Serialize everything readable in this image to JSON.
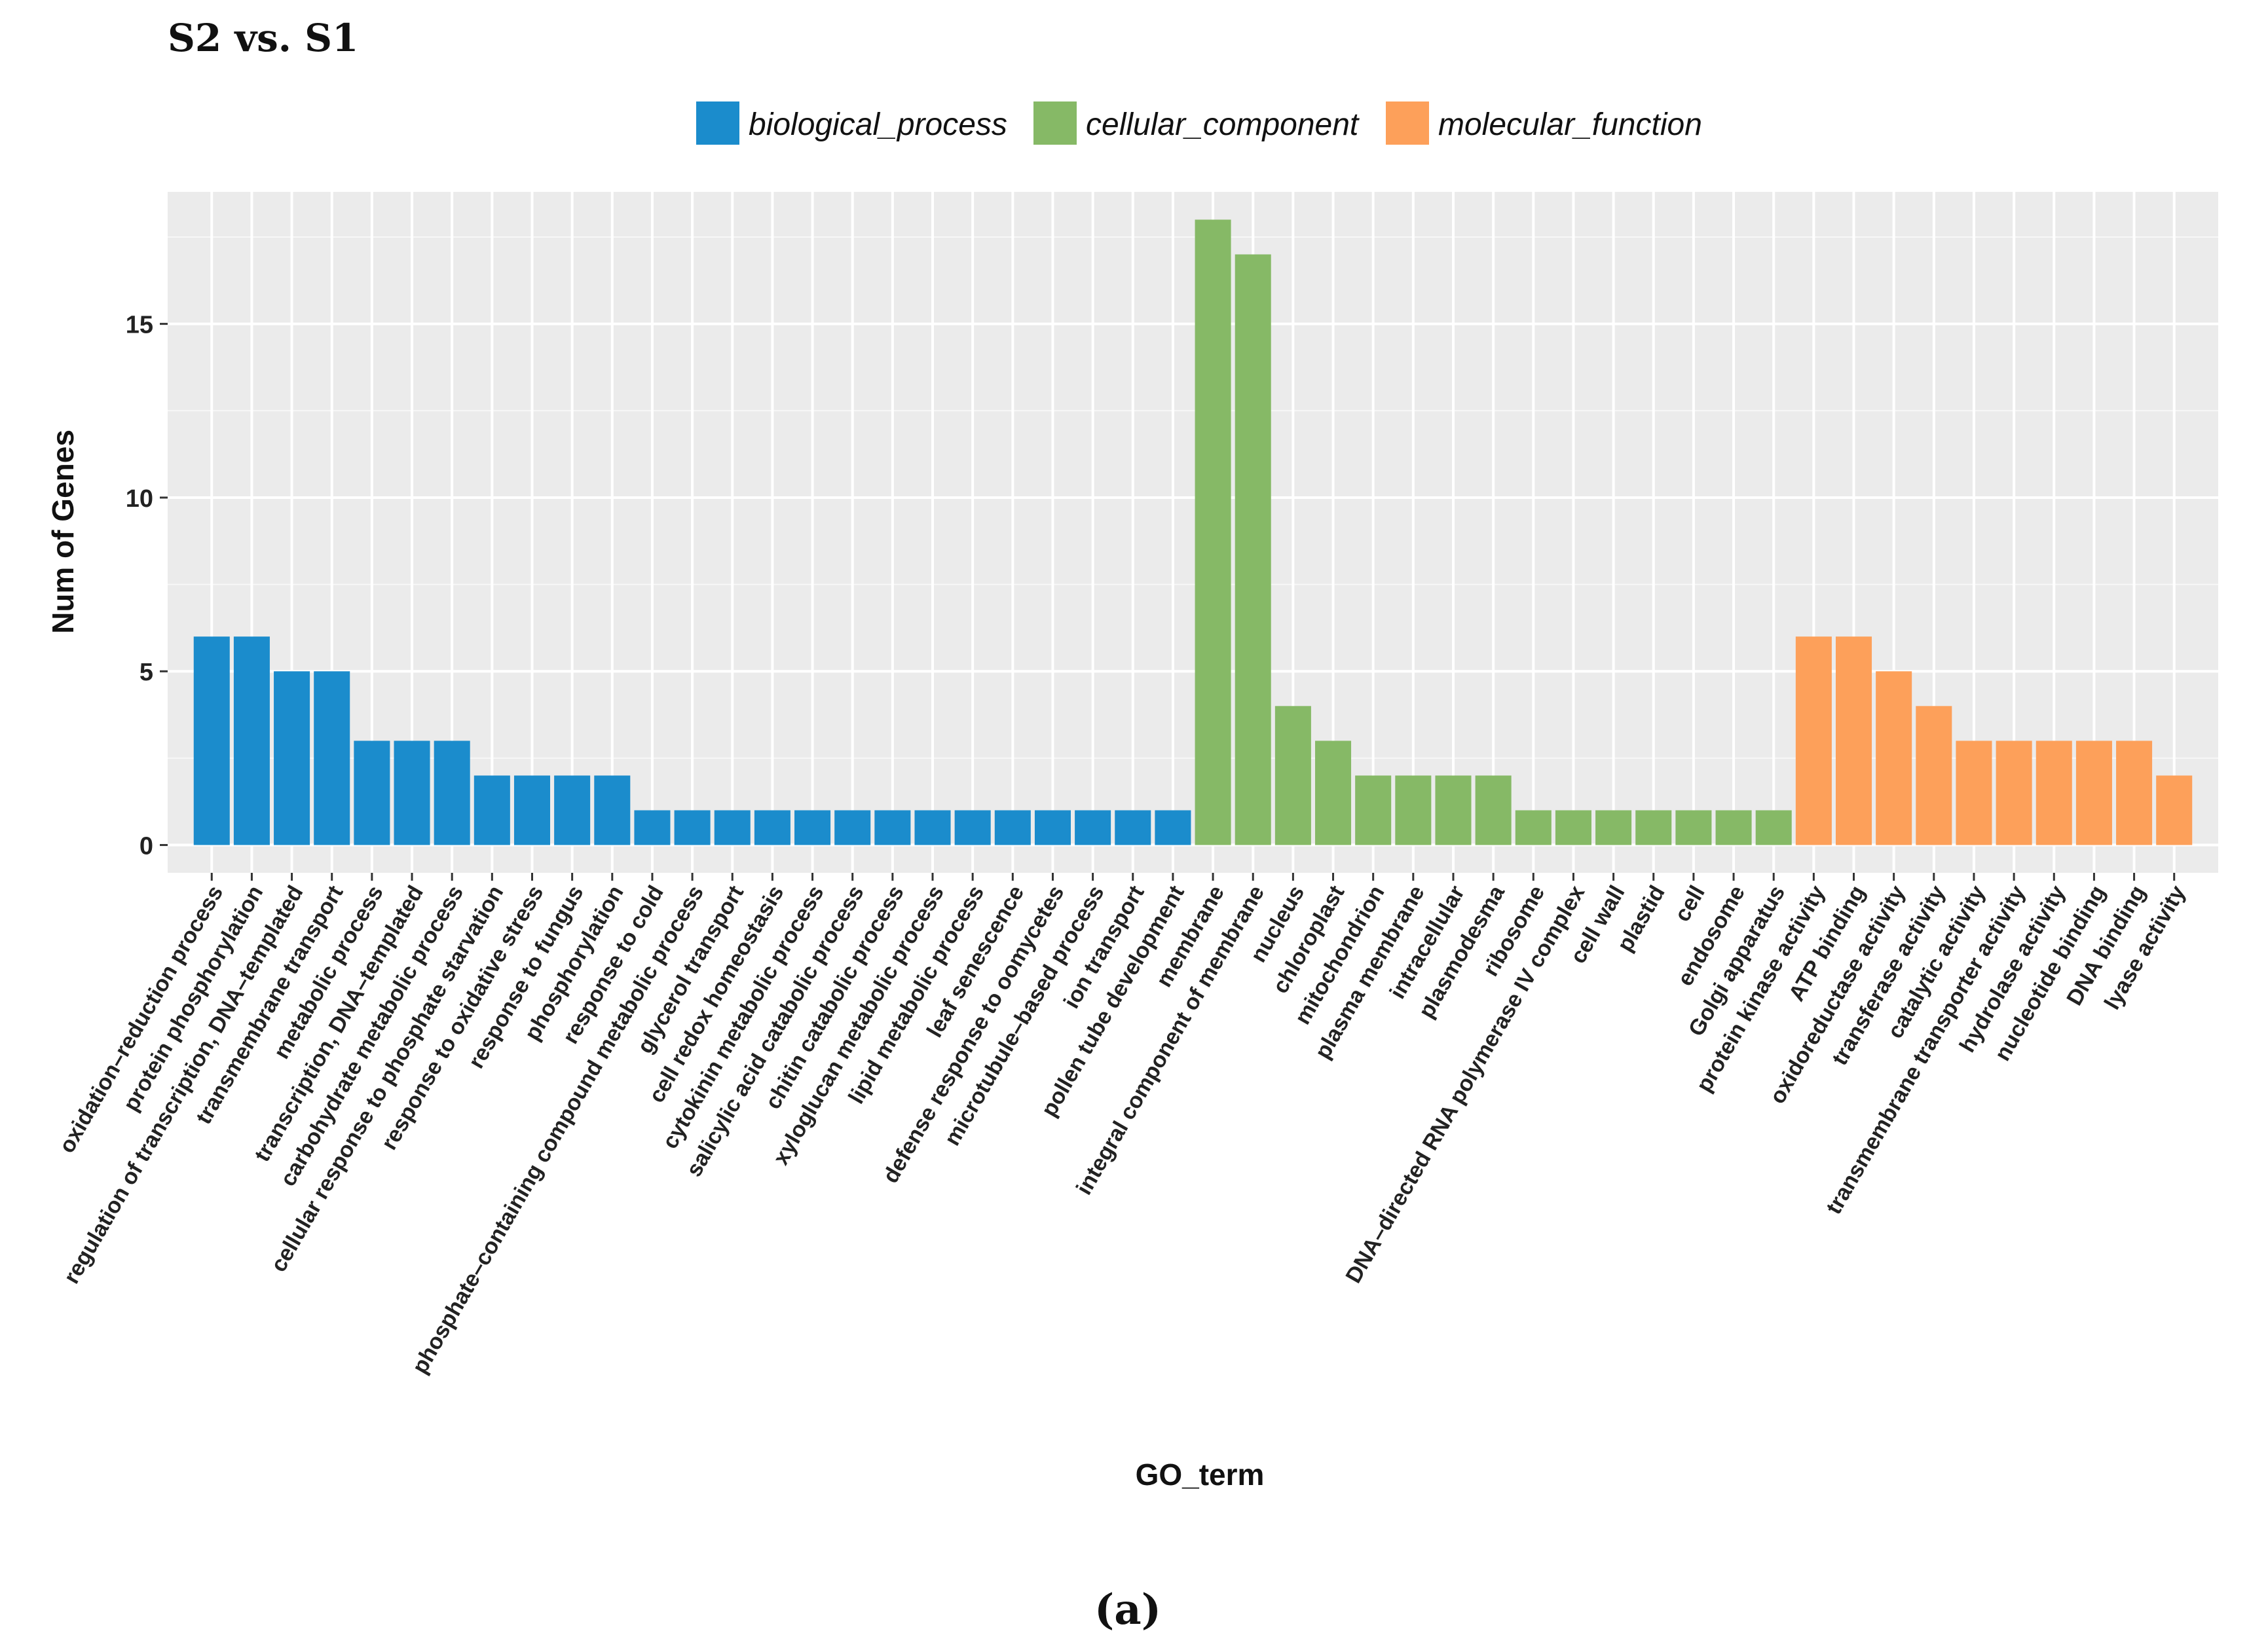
{
  "chart_data": {
    "type": "bar",
    "title": "S2 vs. S1",
    "xlabel": "GO_term",
    "ylabel": "Num of Genes",
    "caption_letter": "a",
    "ylim": [
      -0.8,
      18.8
    ],
    "yticks": [
      0,
      5,
      10,
      15
    ],
    "grid": true,
    "legend": {
      "position": "top-center",
      "entries": [
        {
          "name": "biological_process",
          "color": "#1b8ccc"
        },
        {
          "name": "cellular_component",
          "color": "#86b966"
        },
        {
          "name": "molecular_function",
          "color": "#fda05a"
        }
      ]
    },
    "categories": [
      {
        "label": "oxidation–reduction process",
        "value": 6,
        "group": "biological_process"
      },
      {
        "label": "protein phosphorylation",
        "value": 6,
        "group": "biological_process"
      },
      {
        "label": "regulation of transcription, DNA–templated",
        "value": 5,
        "group": "biological_process"
      },
      {
        "label": "transmembrane transport",
        "value": 5,
        "group": "biological_process"
      },
      {
        "label": "metabolic process",
        "value": 3,
        "group": "biological_process"
      },
      {
        "label": "transcription, DNA–templated",
        "value": 3,
        "group": "biological_process"
      },
      {
        "label": "carbohydrate metabolic process",
        "value": 3,
        "group": "biological_process"
      },
      {
        "label": "cellular response to phosphate starvation",
        "value": 2,
        "group": "biological_process"
      },
      {
        "label": "response to oxidative stress",
        "value": 2,
        "group": "biological_process"
      },
      {
        "label": "response to fungus",
        "value": 2,
        "group": "biological_process"
      },
      {
        "label": "phosphorylation",
        "value": 2,
        "group": "biological_process"
      },
      {
        "label": "response to cold",
        "value": 1,
        "group": "biological_process"
      },
      {
        "label": "phosphate–containing compound metabolic process",
        "value": 1,
        "group": "biological_process"
      },
      {
        "label": "glycerol transport",
        "value": 1,
        "group": "biological_process"
      },
      {
        "label": "cell redox homeostasis",
        "value": 1,
        "group": "biological_process"
      },
      {
        "label": "cytokinin metabolic process",
        "value": 1,
        "group": "biological_process"
      },
      {
        "label": "salicylic acid catabolic process",
        "value": 1,
        "group": "biological_process"
      },
      {
        "label": "chitin catabolic process",
        "value": 1,
        "group": "biological_process"
      },
      {
        "label": "xyloglucan metabolic process",
        "value": 1,
        "group": "biological_process"
      },
      {
        "label": "lipid metabolic process",
        "value": 1,
        "group": "biological_process"
      },
      {
        "label": "leaf senescence",
        "value": 1,
        "group": "biological_process"
      },
      {
        "label": "defense response to oomycetes",
        "value": 1,
        "group": "biological_process"
      },
      {
        "label": "microtubule–based process",
        "value": 1,
        "group": "biological_process"
      },
      {
        "label": "ion transport",
        "value": 1,
        "group": "biological_process"
      },
      {
        "label": "pollen tube development",
        "value": 1,
        "group": "biological_process"
      },
      {
        "label": "membrane",
        "value": 18,
        "group": "cellular_component"
      },
      {
        "label": "integral component of membrane",
        "value": 17,
        "group": "cellular_component"
      },
      {
        "label": "nucleus",
        "value": 4,
        "group": "cellular_component"
      },
      {
        "label": "chloroplast",
        "value": 3,
        "group": "cellular_component"
      },
      {
        "label": "mitochondrion",
        "value": 2,
        "group": "cellular_component"
      },
      {
        "label": "plasma membrane",
        "value": 2,
        "group": "cellular_component"
      },
      {
        "label": "intracellular",
        "value": 2,
        "group": "cellular_component"
      },
      {
        "label": "plasmodesma",
        "value": 2,
        "group": "cellular_component"
      },
      {
        "label": "ribosome",
        "value": 1,
        "group": "cellular_component"
      },
      {
        "label": "DNA–directed RNA polymerase IV complex",
        "value": 1,
        "group": "cellular_component"
      },
      {
        "label": "cell wall",
        "value": 1,
        "group": "cellular_component"
      },
      {
        "label": "plastid",
        "value": 1,
        "group": "cellular_component"
      },
      {
        "label": "cell",
        "value": 1,
        "group": "cellular_component"
      },
      {
        "label": "endosome",
        "value": 1,
        "group": "cellular_component"
      },
      {
        "label": "Golgi apparatus",
        "value": 1,
        "group": "cellular_component"
      },
      {
        "label": "protein kinase activity",
        "value": 6,
        "group": "molecular_function"
      },
      {
        "label": "ATP binding",
        "value": 6,
        "group": "molecular_function"
      },
      {
        "label": "oxidoreductase activity",
        "value": 5,
        "group": "molecular_function"
      },
      {
        "label": "transferase activity",
        "value": 4,
        "group": "molecular_function"
      },
      {
        "label": "catalytic activity",
        "value": 3,
        "group": "molecular_function"
      },
      {
        "label": "transmembrane transporter activity",
        "value": 3,
        "group": "molecular_function"
      },
      {
        "label": "hydrolase activity",
        "value": 3,
        "group": "molecular_function"
      },
      {
        "label": "nucleotide binding",
        "value": 3,
        "group": "molecular_function"
      },
      {
        "label": "DNA binding",
        "value": 3,
        "group": "molecular_function"
      },
      {
        "label": "lyase activity",
        "value": 2,
        "group": "molecular_function"
      }
    ]
  }
}
